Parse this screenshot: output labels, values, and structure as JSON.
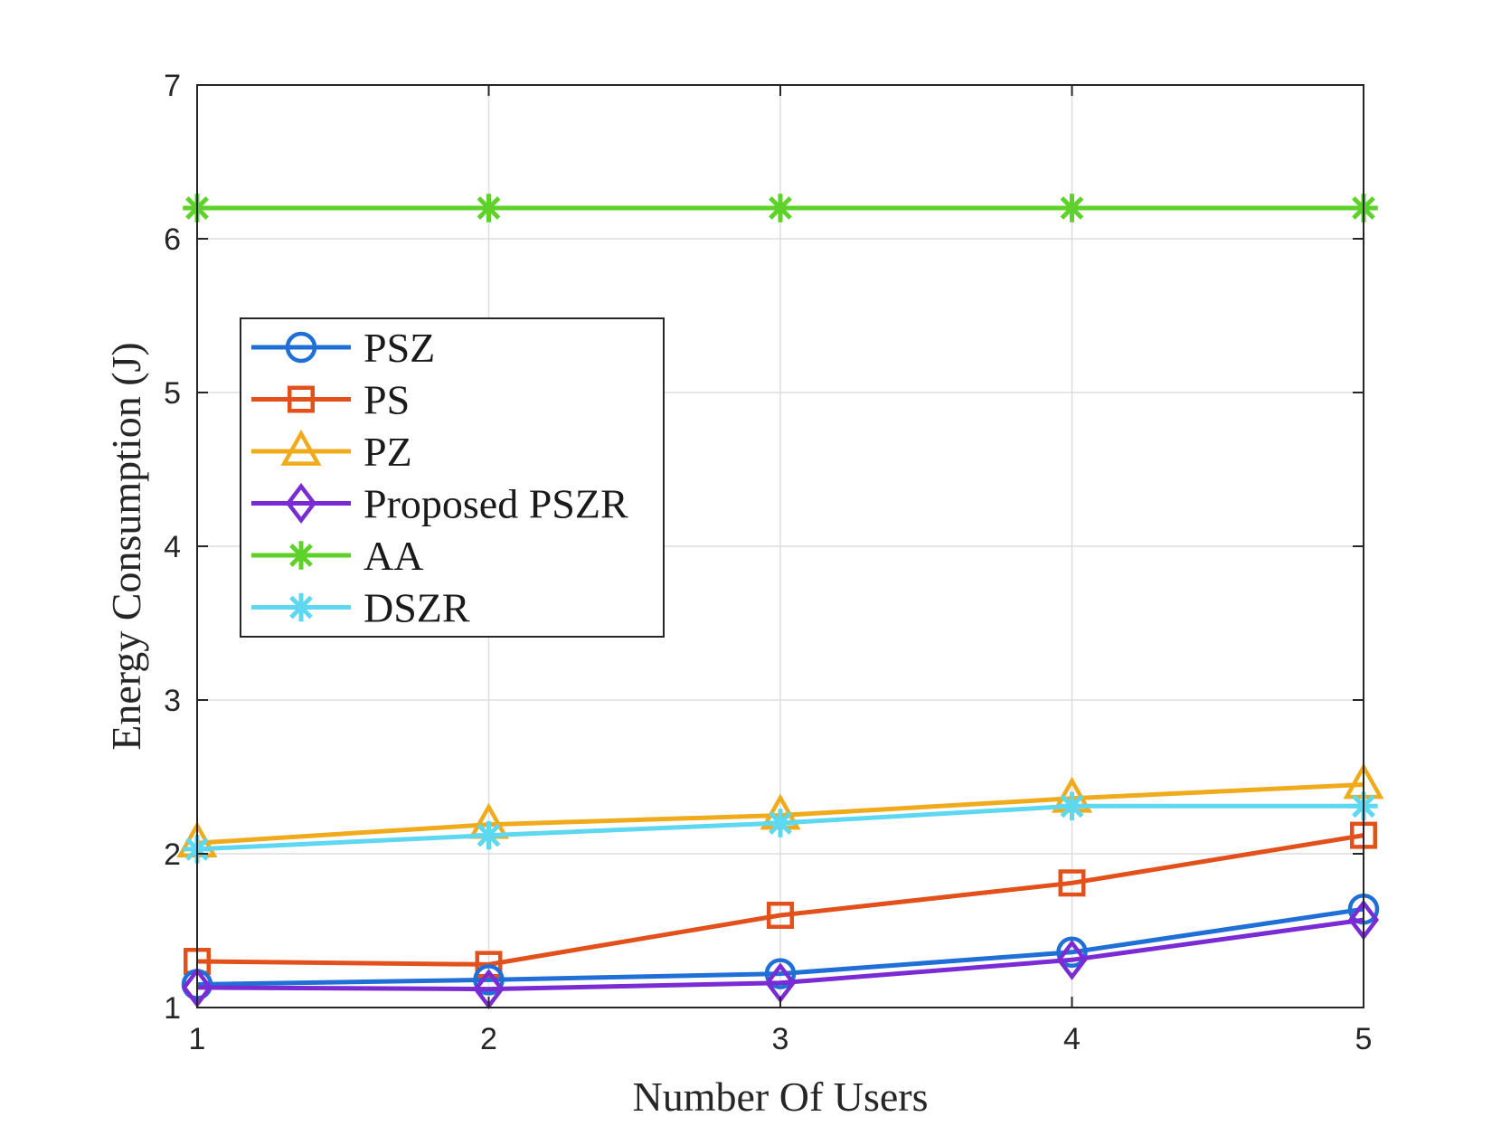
{
  "chart_data": {
    "type": "line",
    "title": "",
    "xlabel": "Number Of Users",
    "ylabel": "Energy Consumption (J)",
    "x": [
      1,
      2,
      3,
      4,
      5
    ],
    "xlim": [
      1,
      5
    ],
    "ylim": [
      1,
      7
    ],
    "xticks": [
      "1",
      "2",
      "3",
      "4",
      "5"
    ],
    "yticks": [
      "1",
      "2",
      "3",
      "4",
      "5",
      "6",
      "7"
    ],
    "grid": true,
    "legend_position": "center-left",
    "series": [
      {
        "name": "PSZ",
        "color": "#1f6fd6",
        "marker": "circle",
        "values": [
          1.15,
          1.18,
          1.22,
          1.36,
          1.64
        ]
      },
      {
        "name": "PS",
        "color": "#e2501c",
        "marker": "square",
        "values": [
          1.3,
          1.28,
          1.6,
          1.81,
          2.12
        ]
      },
      {
        "name": "PZ",
        "color": "#efab1c",
        "marker": "triangle",
        "values": [
          2.07,
          2.19,
          2.25,
          2.36,
          2.45
        ]
      },
      {
        "name": "Proposed PSZR",
        "color": "#7a2bd3",
        "marker": "diamond",
        "values": [
          1.13,
          1.12,
          1.16,
          1.31,
          1.57
        ]
      },
      {
        "name": "AA",
        "color": "#5ed22a",
        "marker": "asterisk",
        "values": [
          6.2,
          6.2,
          6.2,
          6.2,
          6.2
        ]
      },
      {
        "name": "DSZR",
        "color": "#5ed8f0",
        "marker": "asterisk",
        "values": [
          2.03,
          2.12,
          2.2,
          2.31,
          2.31
        ]
      }
    ]
  }
}
